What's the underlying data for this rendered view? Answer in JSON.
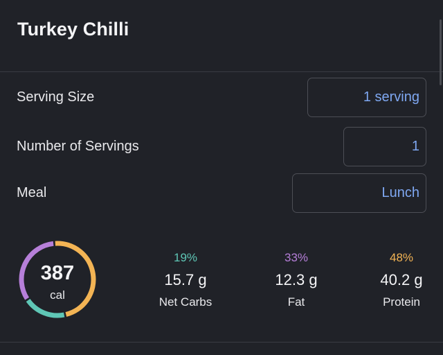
{
  "title": "Turkey Chilli",
  "fields": {
    "serving_size": {
      "label": "Serving Size",
      "value": "1 serving"
    },
    "number_of_servings": {
      "label": "Number of Servings",
      "value": "1"
    },
    "meal": {
      "label": "Meal",
      "value": "Lunch"
    }
  },
  "calories": {
    "value": "387",
    "unit": "cal"
  },
  "macros": {
    "net_carbs": {
      "percent": "19%",
      "amount": "15.7 g",
      "label": "Net Carbs",
      "color": "#5fc7b6",
      "fraction": 0.19
    },
    "fat": {
      "percent": "33%",
      "amount": "12.3 g",
      "label": "Fat",
      "color": "#b67fd9",
      "fraction": 0.33
    },
    "protein": {
      "percent": "48%",
      "amount": "40.2 g",
      "label": "Protein",
      "color": "#f3b454",
      "fraction": 0.48
    }
  }
}
